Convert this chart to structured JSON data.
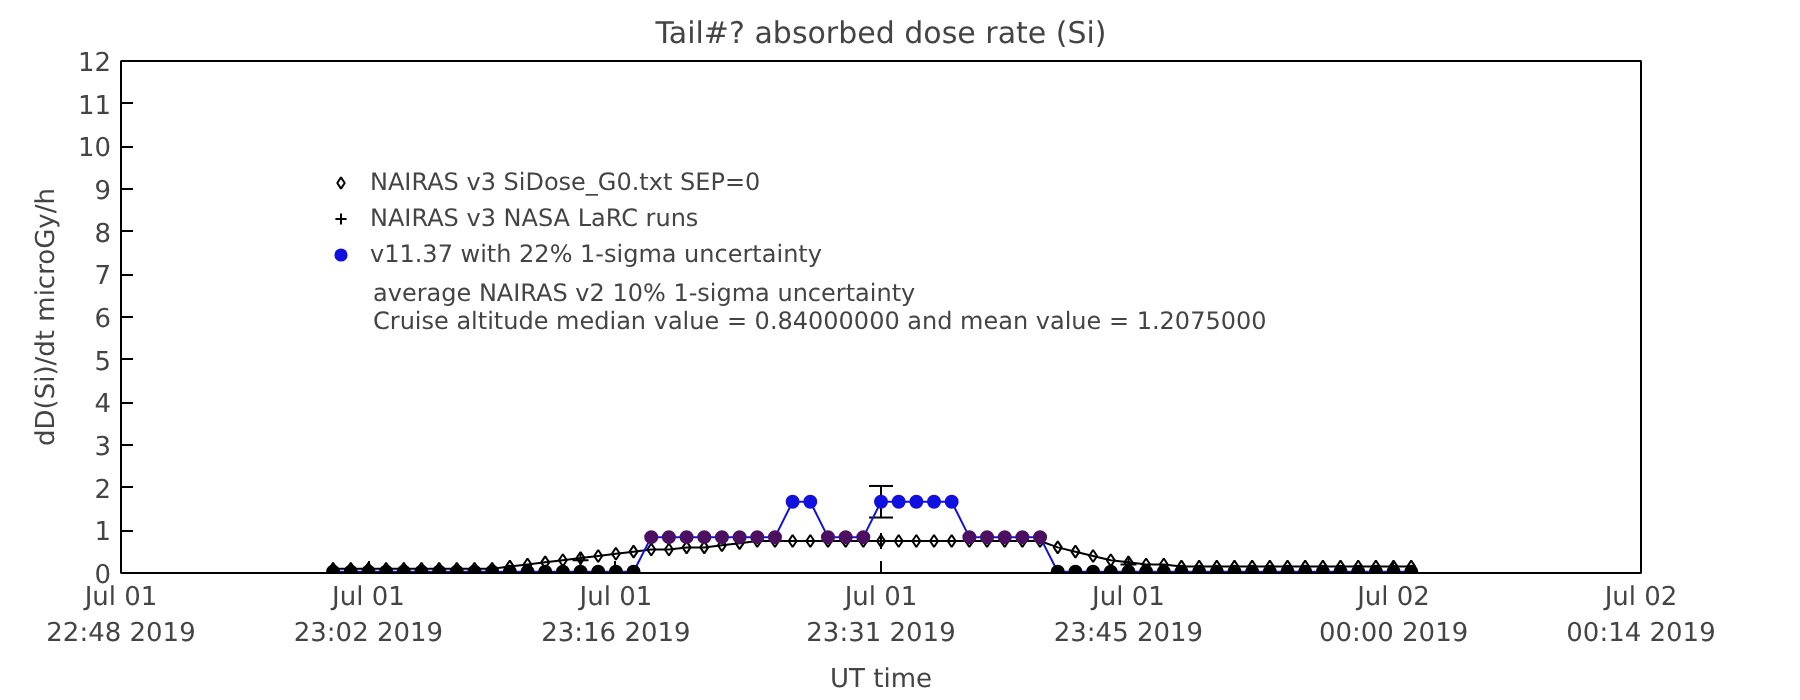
{
  "chart_data": {
    "type": "line",
    "title": "Tail#? absorbed dose rate (Si)",
    "xlabel": "UT time",
    "ylabel": "dD(Si)/dt microGy/h",
    "x": [
      "2019-07-01T23:00",
      "2019-07-01T23:01",
      "2019-07-01T23:02",
      "2019-07-01T23:03",
      "2019-07-01T23:04",
      "2019-07-01T23:05",
      "2019-07-01T23:06",
      "2019-07-01T23:07",
      "2019-07-01T23:08",
      "2019-07-01T23:09",
      "2019-07-01T23:10",
      "2019-07-01T23:11",
      "2019-07-01T23:12",
      "2019-07-01T23:13",
      "2019-07-01T23:14",
      "2019-07-01T23:15",
      "2019-07-01T23:16",
      "2019-07-01T23:17",
      "2019-07-01T23:18",
      "2019-07-01T23:19",
      "2019-07-01T23:20",
      "2019-07-01T23:21",
      "2019-07-01T23:22",
      "2019-07-01T23:23",
      "2019-07-01T23:24",
      "2019-07-01T23:25",
      "2019-07-01T23:26",
      "2019-07-01T23:27",
      "2019-07-01T23:28",
      "2019-07-01T23:29",
      "2019-07-01T23:30",
      "2019-07-01T23:31",
      "2019-07-01T23:32",
      "2019-07-01T23:33",
      "2019-07-01T23:34",
      "2019-07-01T23:35",
      "2019-07-01T23:36",
      "2019-07-01T23:37",
      "2019-07-01T23:38",
      "2019-07-01T23:39",
      "2019-07-01T23:40",
      "2019-07-01T23:41",
      "2019-07-01T23:42",
      "2019-07-01T23:43",
      "2019-07-01T23:44",
      "2019-07-01T23:45",
      "2019-07-01T23:46",
      "2019-07-01T23:47",
      "2019-07-01T23:48",
      "2019-07-01T23:49",
      "2019-07-01T23:50",
      "2019-07-01T23:51",
      "2019-07-01T23:52",
      "2019-07-01T23:53",
      "2019-07-01T23:54",
      "2019-07-01T23:55",
      "2019-07-01T23:56",
      "2019-07-01T23:57",
      "2019-07-01T23:58",
      "2019-07-01T23:59",
      "2019-07-02T00:00",
      "2019-07-02T00:01"
    ],
    "series": [
      {
        "name": "NAIRAS v3 SiDose_G0.txt SEP=0",
        "marker": "diamond",
        "color": "#000000",
        "values": [
          0.1,
          0.1,
          0.1,
          0.1,
          0.1,
          0.1,
          0.1,
          0.1,
          0.1,
          0.1,
          0.15,
          0.2,
          0.25,
          0.3,
          0.35,
          0.4,
          0.45,
          0.5,
          0.55,
          0.55,
          0.6,
          0.6,
          0.65,
          0.7,
          0.75,
          0.75,
          0.75,
          0.75,
          0.75,
          0.75,
          0.75,
          0.75,
          0.75,
          0.75,
          0.75,
          0.75,
          0.75,
          0.75,
          0.75,
          0.75,
          0.75,
          0.6,
          0.5,
          0.4,
          0.3,
          0.25,
          0.2,
          0.2,
          0.15,
          0.15,
          0.15,
          0.15,
          0.15,
          0.15,
          0.15,
          0.15,
          0.15,
          0.15,
          0.15,
          0.15,
          0.15,
          0.15
        ]
      },
      {
        "name": "NAIRAS v3 NASA LaRC runs",
        "type": "scatter",
        "marker": "cross",
        "color": "#000000",
        "x": [
          "2019-07-01T23:14",
          "2019-07-01T23:31",
          "2019-07-01T23:45"
        ],
        "values": [
          0.3,
          0.75,
          0.2
        ]
      },
      {
        "name": "v11.37 with 22% 1-sigma uncertainty",
        "marker": "circle",
        "color": "#1010e0",
        "values": [
          0.03,
          0.03,
          0.03,
          0.03,
          0.03,
          0.03,
          0.03,
          0.03,
          0.03,
          0.03,
          0.03,
          0.03,
          0.03,
          0.03,
          0.03,
          0.03,
          0.03,
          0.03,
          0.84,
          0.84,
          0.84,
          0.84,
          0.84,
          0.84,
          0.84,
          0.84,
          1.67,
          1.67,
          0.84,
          0.84,
          0.84,
          1.67,
          1.67,
          1.67,
          1.67,
          1.67,
          0.84,
          0.84,
          0.84,
          0.84,
          0.84,
          0.03,
          0.03,
          0.03,
          0.03,
          0.03,
          0.03,
          0.03,
          0.03,
          0.03,
          0.03,
          0.03,
          0.03,
          0.03,
          0.03,
          0.03,
          0.03,
          0.03,
          0.03,
          0.03,
          0.03,
          0.03
        ],
        "colors": [
          "#000000",
          "#000000",
          "#000000",
          "#000000",
          "#000000",
          "#000000",
          "#000000",
          "#000000",
          "#000000",
          "#000000",
          "#000000",
          "#000000",
          "#000000",
          "#000000",
          "#000000",
          "#000000",
          "#000000",
          "#000000",
          "#4b1060",
          "#4b1060",
          "#4b1060",
          "#4b1060",
          "#4b1060",
          "#4b1060",
          "#4b1060",
          "#4b1060",
          "#1010e0",
          "#1010e0",
          "#4b1060",
          "#4b1060",
          "#4b1060",
          "#1010e0",
          "#1010e0",
          "#1010e0",
          "#1010e0",
          "#1010e0",
          "#4b1060",
          "#4b1060",
          "#4b1060",
          "#4b1060",
          "#4b1060",
          "#000000",
          "#000000",
          "#000000",
          "#000000",
          "#000000",
          "#000000",
          "#000000",
          "#000000",
          "#000000",
          "#000000",
          "#000000",
          "#000000",
          "#000000",
          "#000000",
          "#000000",
          "#000000",
          "#000000",
          "#000000",
          "#000000",
          "#000000",
          "#000000"
        ],
        "errors": [
          null,
          null,
          null,
          null,
          null,
          null,
          null,
          null,
          null,
          null,
          null,
          null,
          null,
          null,
          null,
          null,
          null,
          null,
          null,
          null,
          null,
          null,
          null,
          null,
          null,
          null,
          null,
          null,
          null,
          null,
          null,
          0.37,
          null,
          null,
          null,
          null,
          null,
          null,
          null,
          null,
          null,
          null,
          null,
          null,
          null,
          null,
          null,
          null,
          null,
          null,
          null,
          null,
          null,
          null,
          null,
          null,
          null,
          null,
          null,
          null,
          null,
          null
        ]
      }
    ],
    "annotations": [
      "average NAIRAS v2 10% 1-sigma uncertainty",
      "Cruise altitude median value = 0.84000000 and mean value = 1.2075000"
    ],
    "xlim": [
      "2019-07-01T22:48",
      "2019-07-02T00:14"
    ],
    "xticks": [
      {
        "value": "2019-07-01T22:48",
        "label": "Jul 01\n22:48 2019"
      },
      {
        "value": "2019-07-01T23:02",
        "label": "Jul 01\n23:02 2019"
      },
      {
        "value": "2019-07-01T23:16",
        "label": "Jul 01\n23:16 2019"
      },
      {
        "value": "2019-07-01T23:31",
        "label": "Jul 01\n23:31 2019"
      },
      {
        "value": "2019-07-01T23:45",
        "label": "Jul 01\n23:45 2019"
      },
      {
        "value": "2019-07-02T00:00",
        "label": "Jul 02\n00:00 2019"
      },
      {
        "value": "2019-07-02T00:14",
        "label": "Jul 02\n00:14 2019"
      }
    ],
    "ylim": [
      0,
      12
    ],
    "yticks": [
      0,
      1,
      2,
      3,
      4,
      5,
      6,
      7,
      8,
      9,
      10,
      11,
      12
    ],
    "grid": false,
    "legend": "top left"
  }
}
